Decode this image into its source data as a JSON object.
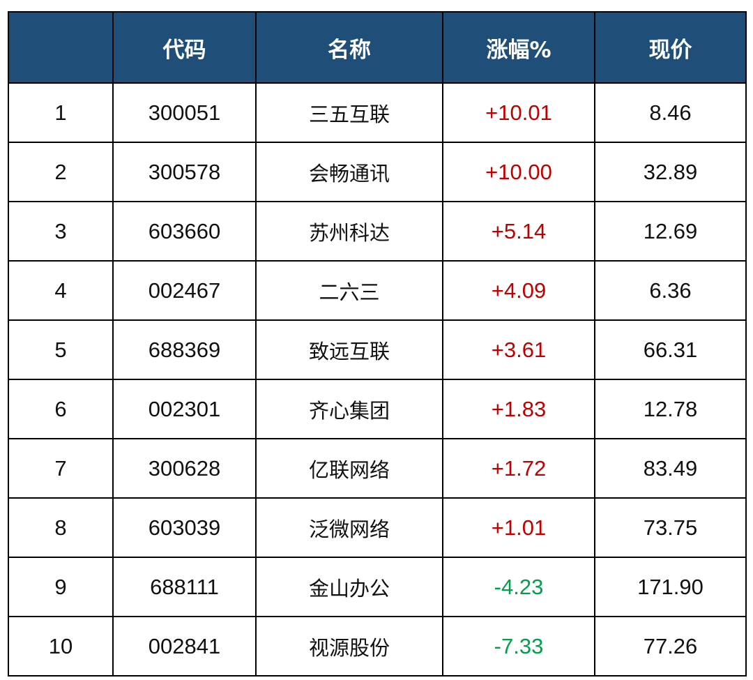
{
  "table": {
    "headers": [
      "",
      "代码",
      "名称",
      "涨幅%",
      "现价"
    ],
    "rows": [
      {
        "rank": "1",
        "code": "300051",
        "name": "三五互联",
        "change": "+10.01",
        "price": "8.46",
        "direction": "up"
      },
      {
        "rank": "2",
        "code": "300578",
        "name": "会畅通讯",
        "change": "+10.00",
        "price": "32.89",
        "direction": "up"
      },
      {
        "rank": "3",
        "code": "603660",
        "name": "苏州科达",
        "change": "+5.14",
        "price": "12.69",
        "direction": "up"
      },
      {
        "rank": "4",
        "code": "002467",
        "name": "二六三",
        "change": "+4.09",
        "price": "6.36",
        "direction": "up"
      },
      {
        "rank": "5",
        "code": "688369",
        "name": "致远互联",
        "change": "+3.61",
        "price": "66.31",
        "direction": "up"
      },
      {
        "rank": "6",
        "code": "002301",
        "name": "齐心集团",
        "change": "+1.83",
        "price": "12.78",
        "direction": "up"
      },
      {
        "rank": "7",
        "code": "300628",
        "name": "亿联网络",
        "change": "+1.72",
        "price": "83.49",
        "direction": "up"
      },
      {
        "rank": "8",
        "code": "603039",
        "name": "泛微网络",
        "change": "+1.01",
        "price": "73.75",
        "direction": "up"
      },
      {
        "rank": "9",
        "code": "688111",
        "name": "金山办公",
        "change": "-4.23",
        "price": "171.90",
        "direction": "down"
      },
      {
        "rank": "10",
        "code": "002841",
        "name": "视源股份",
        "change": "-7.33",
        "price": "77.26",
        "direction": "down"
      }
    ]
  },
  "colors": {
    "header_bg": "#1f4e79",
    "up": "#c00000",
    "down": "#00a04a"
  }
}
